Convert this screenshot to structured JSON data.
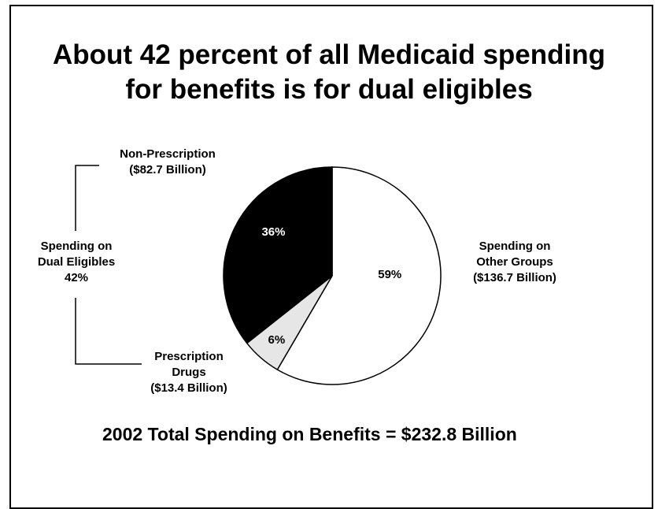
{
  "chart_data": {
    "type": "pie",
    "title": [
      "About 42 percent of all Medicaid spending",
      "for benefits is for dual eligibles"
    ],
    "slices": [
      {
        "key": "other",
        "label": [
          "Spending on",
          "Other Groups",
          "($136.7 Billion)"
        ],
        "value": 59,
        "value_label": "59%",
        "color": "#ffffff",
        "label_color": "#000000"
      },
      {
        "key": "rx",
        "label": [
          "Prescription",
          "Drugs",
          "($13.4 Billion)"
        ],
        "value": 6,
        "value_label": "6%",
        "color": "#e6e6e6",
        "label_color": "#000000"
      },
      {
        "key": "nonrx",
        "label": [
          "Non-Prescription",
          "($82.7 Billion)"
        ],
        "value": 36,
        "value_label": "36%",
        "color": "#000000",
        "label_color": "#ffffff"
      }
    ],
    "group_label": [
      "Spending on",
      "Dual Eligibles",
      "42%"
    ],
    "footer": "2002 Total Spending on Benefits = $232.8 Billion",
    "legend": "none"
  }
}
